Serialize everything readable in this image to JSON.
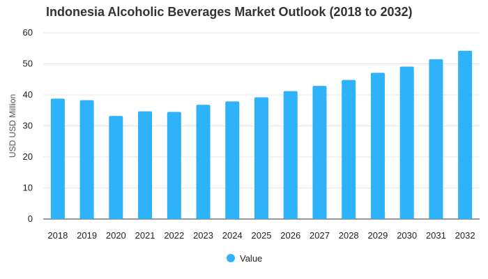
{
  "chart_data": {
    "type": "bar",
    "title": "Indonesia Alcoholic Beverages Market Outlook (2018 to 2032)",
    "xlabel": "",
    "ylabel": "USD USD Million",
    "categories": [
      "2018",
      "2019",
      "2020",
      "2021",
      "2022",
      "2023",
      "2024",
      "2025",
      "2026",
      "2027",
      "2028",
      "2029",
      "2030",
      "2031",
      "2032"
    ],
    "series": [
      {
        "name": "Value",
        "color": "#2EB3FB",
        "values": [
          38.8,
          38.3,
          33.2,
          34.7,
          34.5,
          36.8,
          37.9,
          39.2,
          41.2,
          42.9,
          44.8,
          47.1,
          49.1,
          51.5,
          54.2
        ]
      }
    ],
    "ylim": [
      0,
      60
    ],
    "yticks": [
      0,
      10,
      20,
      30,
      40,
      50,
      60
    ],
    "grid": true,
    "legend_position": "bottom-center"
  }
}
